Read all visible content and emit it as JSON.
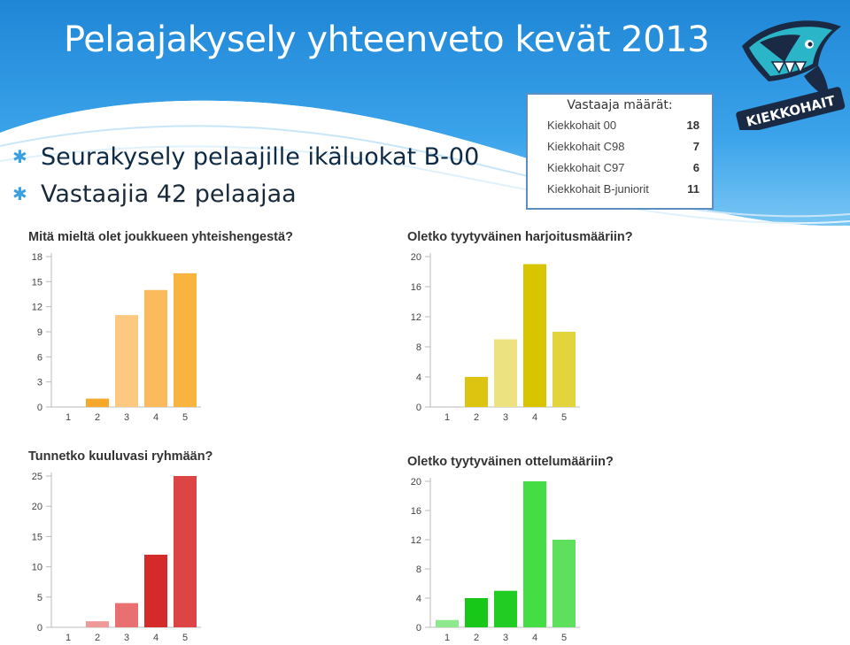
{
  "slide": {
    "title": "Pelaajakysely yhteenveto kevät 2013",
    "bullets": [
      "Seurakysely pelaajille ikäluokat B-00",
      "Vastaajia 42 pelaajaa"
    ]
  },
  "respondents": {
    "title": "Vastaaja määrät:",
    "rows": [
      {
        "team": "Kiekkohait 00",
        "count": "18"
      },
      {
        "team": "Kiekkohait C98",
        "count": "7"
      },
      {
        "team": "Kiekkohait C97",
        "count": "6"
      },
      {
        "team": "Kiekkohait B-juniorit",
        "count": "11"
      }
    ]
  },
  "logo": {
    "text": "KIEKKOHAIT",
    "icon": "shark-logo-icon"
  },
  "chart_data": [
    {
      "type": "bar",
      "title": "Mitä mieltä olet joukkueen yhteishengestä?",
      "categories": [
        "1",
        "2",
        "3",
        "4",
        "5"
      ],
      "values": [
        0,
        1,
        11,
        14,
        16
      ],
      "ylim": [
        0,
        18
      ],
      "yticks": [
        "0",
        "3",
        "6",
        "9",
        "12",
        "15",
        "18"
      ],
      "colors": [
        "#f0a030",
        "#f5a82a",
        "#fdc880",
        "#fbbb5c",
        "#f9b440"
      ]
    },
    {
      "type": "bar",
      "title": "Oletko tyytyväinen harjoitusmääriin?",
      "categories": [
        "1",
        "2",
        "3",
        "4",
        "5"
      ],
      "values": [
        0,
        4,
        9,
        19,
        10
      ],
      "ylim": [
        0,
        20
      ],
      "yticks": [
        "0",
        "4",
        "8",
        "12",
        "16",
        "20"
      ],
      "colors": [
        "#d8c000",
        "#dcc410",
        "#ede280",
        "#d9c400",
        "#e3d43c"
      ]
    },
    {
      "type": "bar",
      "title": "Tunnetko kuuluvasi ryhmään?",
      "categories": [
        "1",
        "2",
        "3",
        "4",
        "5"
      ],
      "values": [
        0,
        1,
        4,
        12,
        25
      ],
      "ylim": [
        0,
        25
      ],
      "yticks": [
        "0",
        "5",
        "10",
        "15",
        "20",
        "25"
      ],
      "colors": [
        "#e05050",
        "#ef9898",
        "#e87070",
        "#d42a2a",
        "#dd4444"
      ]
    },
    {
      "type": "bar",
      "title": "Oletko tyytyväinen ottelumääriin?",
      "categories": [
        "1",
        "2",
        "3",
        "4",
        "5"
      ],
      "values": [
        1,
        4,
        5,
        20,
        12
      ],
      "ylim": [
        0,
        20
      ],
      "yticks": [
        "0",
        "4",
        "8",
        "12",
        "16",
        "20"
      ],
      "colors": [
        "#8ee88e",
        "#18c818",
        "#22cc22",
        "#44dd44",
        "#5ee05e"
      ]
    }
  ]
}
